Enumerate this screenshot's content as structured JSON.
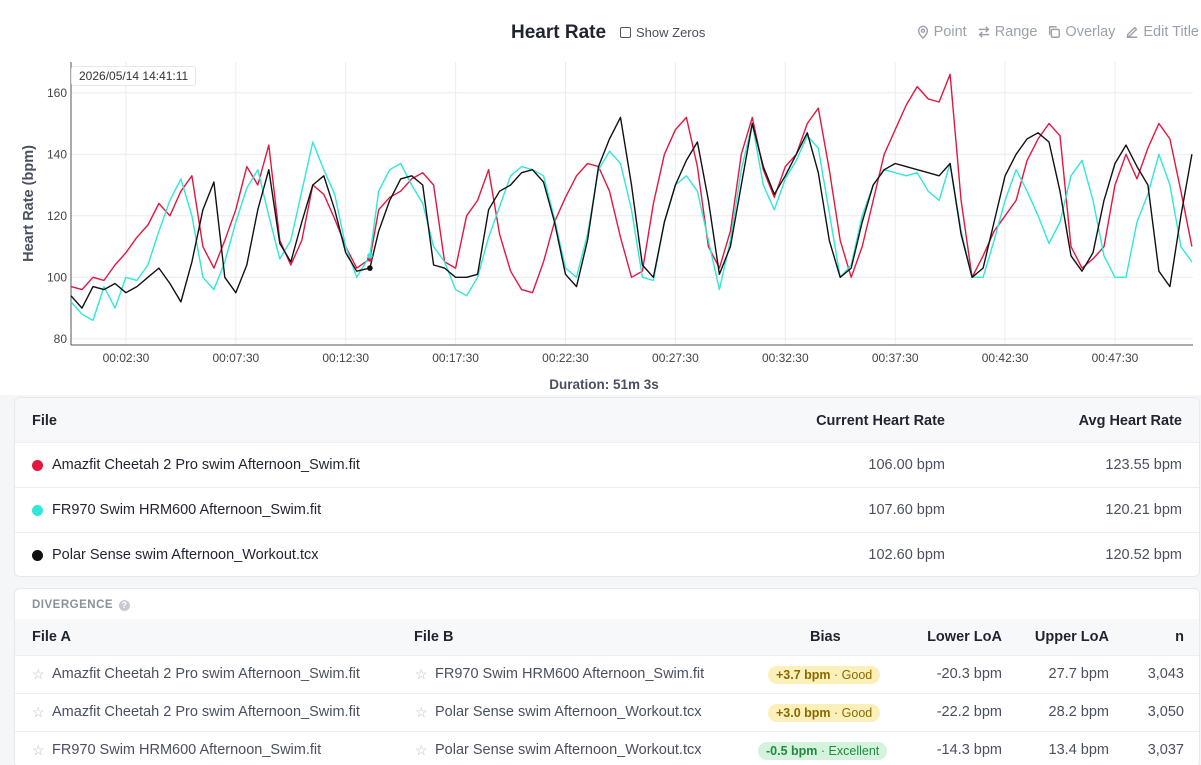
{
  "chart_header": {
    "title": "Heart Rate",
    "show_zeros_label": "Show Zeros",
    "tools": [
      {
        "label": "Point",
        "icon": "pin-icon"
      },
      {
        "label": "Range",
        "icon": "arrows-icon"
      },
      {
        "label": "Overlay",
        "icon": "copy-icon"
      },
      {
        "label": "Edit Title",
        "icon": "edit-icon"
      }
    ]
  },
  "tooltip": "2026/05/14 14:41:11",
  "duration": "Duration: 51m 3s",
  "chart_data": {
    "type": "line",
    "xlabel": "",
    "ylabel": "Heart Rate (bpm)",
    "ylim": [
      78,
      170
    ],
    "xlim": [
      0,
      51.05
    ],
    "yticks": [
      80,
      100,
      120,
      140,
      160
    ],
    "xticks": [
      {
        "t": 2.5,
        "label": "00:02:30"
      },
      {
        "t": 7.5,
        "label": "00:07:30"
      },
      {
        "t": 12.5,
        "label": "00:12:30"
      },
      {
        "t": 17.5,
        "label": "00:17:30"
      },
      {
        "t": 22.5,
        "label": "00:22:30"
      },
      {
        "t": 27.5,
        "label": "00:27:30"
      },
      {
        "t": 32.5,
        "label": "00:32:30"
      },
      {
        "t": 37.5,
        "label": "00:37:30"
      },
      {
        "t": 42.5,
        "label": "00:42:30"
      },
      {
        "t": 47.5,
        "label": "00:47:30"
      }
    ],
    "grid": true,
    "cursor_t": 13.6,
    "series": [
      {
        "name": "Amazfit Cheetah 2 Pro swim Afternoon_Swim.fit",
        "color": "#e3173e",
        "x": [
          0,
          0.5,
          1,
          1.5,
          2,
          2.5,
          3,
          3.5,
          4,
          4.5,
          5,
          5.5,
          6,
          6.5,
          7,
          7.5,
          8,
          8.5,
          9,
          9.5,
          10,
          10.5,
          11,
          11.5,
          12,
          12.5,
          13,
          13.6,
          14,
          14.5,
          15,
          15.5,
          16,
          16.5,
          17,
          17.5,
          18,
          18.5,
          19,
          19.5,
          20,
          20.5,
          21,
          21.5,
          22,
          22.5,
          23,
          23.5,
          24,
          24.5,
          25,
          25.5,
          26,
          26.5,
          27,
          27.5,
          28,
          28.5,
          29,
          29.5,
          30,
          30.5,
          31,
          31.5,
          32,
          32.5,
          33,
          33.5,
          34,
          34.5,
          35,
          35.5,
          36,
          36.5,
          37,
          37.5,
          38,
          38.5,
          39,
          39.5,
          40,
          40.5,
          41,
          41.5,
          42,
          42.5,
          43,
          43.5,
          44,
          44.5,
          45,
          45.5,
          46,
          46.5,
          47,
          47.5,
          48,
          48.5,
          49,
          49.5,
          50,
          50.5,
          51
        ],
        "y": [
          97,
          96,
          100,
          99,
          104,
          108,
          113,
          117,
          124,
          120,
          128,
          133,
          110,
          103,
          112,
          122,
          136,
          130,
          143,
          112,
          104,
          112,
          130,
          127,
          119,
          110,
          103,
          106,
          122,
          126,
          128,
          132,
          134,
          130,
          105,
          103,
          120,
          125,
          135,
          114,
          102,
          96,
          95,
          105,
          118,
          126,
          133,
          137,
          136,
          128,
          113,
          100,
          102,
          124,
          140,
          148,
          152,
          136,
          110,
          103,
          115,
          140,
          152,
          135,
          126,
          136,
          140,
          150,
          155,
          135,
          112,
          100,
          110,
          125,
          140,
          148,
          156,
          162,
          158,
          157,
          166,
          125,
          100,
          107,
          115,
          120,
          125,
          138,
          145,
          150,
          146,
          110,
          103,
          106,
          110,
          130,
          140,
          132,
          142,
          150,
          145,
          128,
          110
        ]
      },
      {
        "name": "FR970 Swim HRM600 Afternoon_Swim.fit",
        "color": "#2fe8d8",
        "x": [
          0,
          0.5,
          1,
          1.5,
          2,
          2.5,
          3,
          3.5,
          4,
          4.5,
          5,
          5.5,
          6,
          6.5,
          7,
          7.5,
          8,
          8.5,
          9,
          9.5,
          10,
          10.5,
          11,
          11.5,
          12,
          12.5,
          13,
          13.6,
          14,
          14.5,
          15,
          15.5,
          16,
          16.5,
          17,
          17.5,
          18,
          18.5,
          19,
          19.5,
          20,
          20.5,
          21,
          21.5,
          22,
          22.5,
          23,
          23.5,
          24,
          24.5,
          25,
          25.5,
          26,
          26.5,
          27,
          27.5,
          28,
          28.5,
          29,
          29.5,
          30,
          30.5,
          31,
          31.5,
          32,
          32.5,
          33,
          33.5,
          34,
          34.5,
          35,
          35.5,
          36,
          36.5,
          37,
          37.5,
          38,
          38.5,
          39,
          39.5,
          40,
          40.5,
          41,
          41.5,
          42,
          42.5,
          43,
          43.5,
          44,
          44.5,
          45,
          45.5,
          46,
          46.5,
          47,
          47.5,
          48,
          48.5,
          49,
          49.5,
          50,
          50.5,
          51
        ],
        "y": [
          92,
          88,
          86,
          97,
          90,
          100,
          99,
          104,
          115,
          125,
          132,
          120,
          100,
          96,
          105,
          118,
          129,
          135,
          120,
          106,
          112,
          128,
          144,
          135,
          127,
          110,
          100,
          107,
          128,
          135,
          137,
          130,
          124,
          110,
          105,
          96,
          94,
          100,
          113,
          123,
          133,
          136,
          135,
          133,
          119,
          103,
          100,
          114,
          135,
          141,
          137,
          122,
          100,
          99,
          118,
          130,
          133,
          128,
          112,
          96,
          112,
          135,
          150,
          130,
          122,
          132,
          138,
          146,
          142,
          121,
          100,
          104,
          120,
          130,
          135,
          134,
          133,
          134,
          128,
          125,
          137,
          115,
          100,
          100,
          112,
          125,
          135,
          128,
          120,
          111,
          118,
          133,
          138,
          125,
          107,
          100,
          100,
          118,
          127,
          140,
          130,
          110,
          105
        ]
      },
      {
        "name": "Polar Sense swim Afternoon_Workout.tcx",
        "color": "#111111",
        "x": [
          0,
          0.5,
          1,
          1.5,
          2,
          2.5,
          3,
          3.5,
          4,
          4.5,
          5,
          5.5,
          6,
          6.5,
          7,
          7.5,
          8,
          8.5,
          9,
          9.5,
          10,
          10.5,
          11,
          11.5,
          12,
          12.5,
          13,
          13.6,
          14,
          14.5,
          15,
          15.5,
          16,
          16.5,
          17,
          17.5,
          18,
          18.5,
          19,
          19.5,
          20,
          20.5,
          21,
          21.5,
          22,
          22.5,
          23,
          23.5,
          24,
          24.5,
          25,
          25.5,
          26,
          26.5,
          27,
          27.5,
          28,
          28.5,
          29,
          29.5,
          30,
          30.5,
          31,
          31.5,
          32,
          32.5,
          33,
          33.5,
          34,
          34.5,
          35,
          35.5,
          36,
          36.5,
          37,
          37.5,
          38,
          38.5,
          39,
          39.5,
          40,
          40.5,
          41,
          41.5,
          42,
          42.5,
          43,
          43.5,
          44,
          44.5,
          45,
          45.5,
          46,
          46.5,
          47,
          47.5,
          48,
          48.5,
          49,
          49.5,
          50,
          50.5,
          51
        ],
        "y": [
          94,
          90,
          97,
          96,
          98,
          95,
          97,
          100,
          103,
          98,
          92,
          105,
          122,
          131,
          100,
          95,
          104,
          122,
          135,
          111,
          105,
          118,
          130,
          133,
          122,
          108,
          102,
          103,
          115,
          125,
          132,
          133,
          130,
          104,
          103,
          100,
          100,
          101,
          122,
          128,
          130,
          134,
          135,
          131,
          118,
          101,
          97,
          112,
          136,
          145,
          152,
          130,
          104,
          100,
          118,
          130,
          138,
          144,
          125,
          101,
          110,
          130,
          150,
          136,
          127,
          133,
          140,
          147,
          134,
          112,
          100,
          103,
          118,
          130,
          135,
          137,
          136,
          135,
          134,
          133,
          137,
          114,
          100,
          103,
          118,
          133,
          140,
          145,
          147,
          144,
          128,
          107,
          102,
          108,
          125,
          137,
          143,
          136,
          130,
          102,
          97,
          120,
          140
        ]
      }
    ]
  },
  "files_table": {
    "headers": {
      "file": "File",
      "current": "Current Heart Rate",
      "avg": "Avg Heart Rate"
    },
    "rows": [
      {
        "color": "#e3173e",
        "file": "Amazfit Cheetah 2 Pro swim Afternoon_Swim.fit",
        "current": "106.00 bpm",
        "avg": "123.55 bpm"
      },
      {
        "color": "#2fe8d8",
        "file": "FR970 Swim HRM600 Afternoon_Swim.fit",
        "current": "107.60 bpm",
        "avg": "120.21 bpm"
      },
      {
        "color": "#111111",
        "file": "Polar Sense swim Afternoon_Workout.tcx",
        "current": "102.60 bpm",
        "avg": "120.52 bpm"
      }
    ]
  },
  "divergence": {
    "label": "DIVERGENCE",
    "headers": {
      "file_a": "File A",
      "file_b": "File B",
      "bias": "Bias",
      "lower": "Lower LoA",
      "upper": "Upper LoA",
      "n": "n"
    },
    "rows": [
      {
        "file_a": "Amazfit Cheetah 2 Pro swim Afternoon_Swim.fit",
        "file_b": "FR970 Swim HRM600 Afternoon_Swim.fit",
        "bias": "+3.7 bpm",
        "rating": "· Good",
        "lower": "-20.3 bpm",
        "upper": "27.7 bpm",
        "n": "3,043"
      },
      {
        "file_a": "Amazfit Cheetah 2 Pro swim Afternoon_Swim.fit",
        "file_b": "Polar Sense swim Afternoon_Workout.tcx",
        "bias": "+3.0 bpm",
        "rating": "· Good",
        "lower": "-22.2 bpm",
        "upper": "28.2 bpm",
        "n": "3,050"
      },
      {
        "file_a": "FR970 Swim HRM600 Afternoon_Swim.fit",
        "file_b": "Polar Sense swim Afternoon_Workout.tcx",
        "bias": "-0.5 bpm",
        "rating": "· Excellent",
        "lower": "-14.3 bpm",
        "upper": "13.4 bpm",
        "n": "3,037"
      }
    ]
  }
}
